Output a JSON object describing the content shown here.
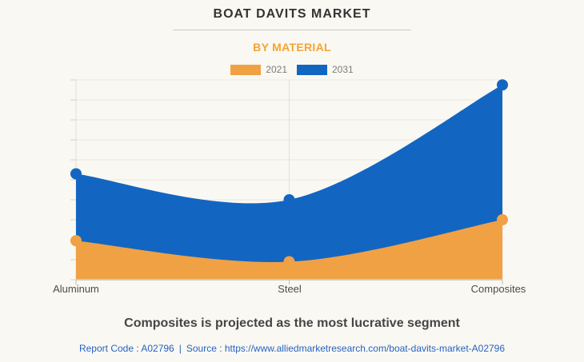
{
  "header": {
    "title": "BOAT DAVITS MARKET",
    "subtitle": "BY MATERIAL"
  },
  "chart_data": {
    "type": "area",
    "title": "BOAT DAVITS MARKET",
    "subtitle": "BY MATERIAL",
    "categories": [
      "Aluminum",
      "Steel",
      "Composites"
    ],
    "series": [
      {
        "name": "2021",
        "color": "#f0a144",
        "values": [
          1.95,
          0.9,
          3.0
        ]
      },
      {
        "name": "2031",
        "color": "#1266c2",
        "values": [
          5.3,
          4.0,
          9.75
        ]
      }
    ],
    "xlabel": "",
    "ylabel": "",
    "ylim": [
      0,
      10
    ],
    "y_axis_tick_labels_visible": false,
    "grid": true,
    "legend_position": "top",
    "marker": "circle"
  },
  "footer": {
    "headline": "Composites is projected as the most lucrative segment",
    "report_code": "Report Code : A02796",
    "separator": "|",
    "source": "Source : https://www.alliedmarketresearch.com/boat-davits-market-A02796"
  },
  "colors": {
    "background": "#faf8f2",
    "series_2021": "#f0a144",
    "series_2031": "#1266c2",
    "subtitle_text": "#f4a433",
    "link_text": "#2563c4",
    "gridline": "#ece9e2",
    "axis_line": "#bdbbb6"
  }
}
